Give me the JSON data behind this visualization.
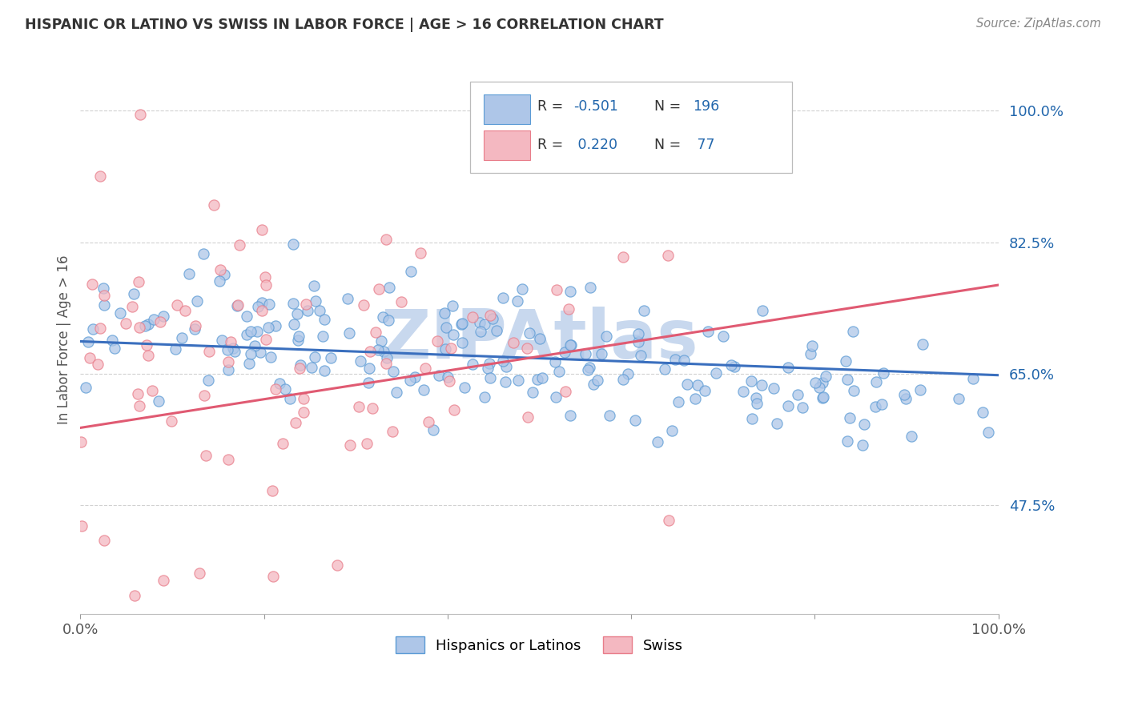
{
  "title": "HISPANIC OR LATINO VS SWISS IN LABOR FORCE | AGE > 16 CORRELATION CHART",
  "source": "Source: ZipAtlas.com",
  "ylabel": "In Labor Force | Age > 16",
  "xmin": 0.0,
  "xmax": 1.0,
  "ymin": 0.33,
  "ymax": 1.06,
  "ytick_positions": [
    0.475,
    0.65,
    0.825,
    1.0
  ],
  "ytick_labels": [
    "47.5%",
    "65.0%",
    "82.5%",
    "100.0%"
  ],
  "blue_color": "#aec6e8",
  "blue_edge": "#5b9bd5",
  "pink_color": "#f4b8c1",
  "pink_edge": "#e87d8a",
  "blue_line_color": "#3a6fbe",
  "pink_line_color": "#e05a72",
  "background_color": "#ffffff",
  "grid_color": "#cccccc",
  "title_color": "#333333",
  "watermark_color": "#c8d8ee",
  "tick_label_color": "#2166ac",
  "axis_label_color": "#555555",
  "blue_line_x0": 0.0,
  "blue_line_x1": 1.0,
  "blue_line_y0": 0.693,
  "blue_line_y1": 0.648,
  "pink_line_x0": 0.0,
  "pink_line_x1": 1.0,
  "pink_line_y0": 0.578,
  "pink_line_y1": 0.768
}
